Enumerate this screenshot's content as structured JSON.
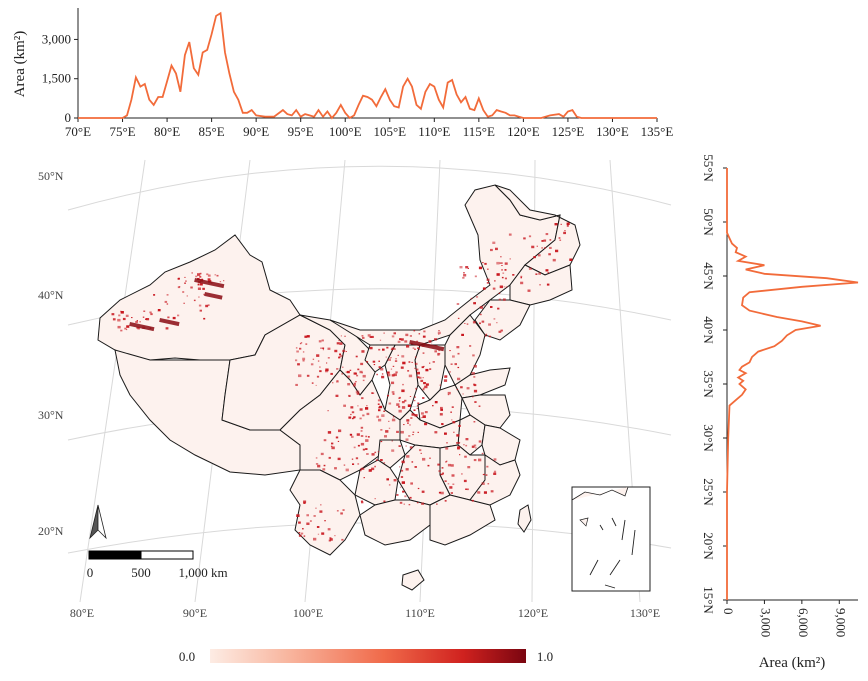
{
  "chart_data": [
    {
      "name": "longitude-profile",
      "type": "line",
      "xlabel": "",
      "ylabel": "Area (km²)",
      "xlim": [
        70,
        135
      ],
      "ylim": [
        0,
        4200
      ],
      "x_ticks": [
        "70°E",
        "75°E",
        "80°E",
        "85°E",
        "90°E",
        "95°E",
        "100°E",
        "105°E",
        "110°E",
        "115°E",
        "120°E",
        "125°E",
        "130°E",
        "135°E"
      ],
      "y_ticks": [
        "0",
        "1,500",
        "3,000"
      ],
      "y_tick_values": [
        0,
        1500,
        3000
      ],
      "x_tick_values": [
        70,
        75,
        80,
        85,
        90,
        95,
        100,
        105,
        110,
        115,
        120,
        125,
        130,
        135
      ],
      "color": "#f26b3a",
      "series": [
        {
          "name": "area",
          "x": [
            70,
            75,
            75.5,
            76,
            76.5,
            77,
            77.5,
            78,
            78.5,
            79,
            79.5,
            80,
            80.5,
            81,
            81.5,
            82,
            82.5,
            83,
            83.5,
            84,
            84.5,
            85,
            85.5,
            86,
            86.5,
            87,
            87.5,
            88,
            88.5,
            89,
            89.5,
            90,
            91,
            92,
            93,
            93.5,
            94,
            94.5,
            95,
            95.5,
            96,
            96.5,
            97,
            97.5,
            98,
            98.5,
            99,
            99.5,
            100,
            100.5,
            101,
            101.5,
            102,
            102.5,
            103,
            103.5,
            104,
            104.5,
            105,
            105.5,
            106,
            106.5,
            107,
            107.5,
            108,
            108.5,
            109,
            109.5,
            110,
            110.5,
            111,
            111.5,
            112,
            112.5,
            113,
            113.5,
            114,
            114.5,
            115,
            115.5,
            116,
            116.5,
            117,
            117.5,
            118,
            118.5,
            119,
            119.5,
            120,
            121,
            122,
            123,
            124,
            124.5,
            125,
            125.5,
            126,
            126.5,
            127,
            128,
            130,
            132,
            135
          ],
          "y": [
            0,
            0,
            100,
            700,
            1550,
            1200,
            1300,
            700,
            500,
            800,
            800,
            1400,
            2000,
            1700,
            1000,
            2400,
            2900,
            1900,
            1650,
            2500,
            2600,
            3200,
            3900,
            4000,
            2500,
            1700,
            1000,
            700,
            200,
            200,
            300,
            100,
            50,
            50,
            300,
            150,
            100,
            300,
            50,
            150,
            100,
            50,
            300,
            50,
            250,
            0,
            200,
            500,
            200,
            0,
            100,
            500,
            850,
            800,
            700,
            450,
            800,
            1100,
            700,
            450,
            400,
            1200,
            1500,
            1200,
            500,
            350,
            1000,
            1300,
            1200,
            700,
            400,
            1350,
            1450,
            900,
            600,
            800,
            350,
            300,
            750,
            300,
            50,
            100,
            300,
            250,
            200,
            100,
            100,
            50,
            0,
            0,
            0,
            100,
            150,
            50,
            250,
            300,
            50,
            0,
            0,
            0,
            0,
            0,
            0
          ]
        }
      ]
    },
    {
      "name": "latitude-profile",
      "type": "line",
      "xlabel": "Area (km²)",
      "ylabel": "",
      "xlim": [
        0,
        10500
      ],
      "ylim": [
        15,
        55
      ],
      "x_ticks": [
        "0",
        "3,000",
        "6,000",
        "9,000"
      ],
      "x_tick_values": [
        0,
        3000,
        6000,
        9000
      ],
      "y_ticks": [
        "15°N",
        "20°N",
        "25°N",
        "30°N",
        "35°N",
        "40°N",
        "45°N",
        "50°N",
        "55°N"
      ],
      "y_tick_values": [
        15,
        20,
        25,
        30,
        35,
        40,
        45,
        50,
        55
      ],
      "color": "#f26b3a",
      "series": [
        {
          "name": "area",
          "lat": [
            15,
            20,
            25,
            30,
            33,
            33.5,
            34,
            34.5,
            35,
            35.3,
            35.6,
            36,
            36.3,
            36.6,
            37,
            37.5,
            38,
            38.5,
            39,
            39.5,
            40,
            40.4,
            40.8,
            41.2,
            41.8,
            42.3,
            43,
            43.5,
            44,
            44.4,
            44.8,
            45.2,
            45.6,
            46,
            46.4,
            46.8,
            47.2,
            47.6,
            48,
            48.5,
            49,
            55
          ],
          "area": [
            0,
            0,
            0,
            100,
            200,
            700,
            1200,
            1500,
            1000,
            1300,
            900,
            1500,
            1000,
            1200,
            1800,
            2000,
            2500,
            3800,
            4400,
            4800,
            5500,
            7500,
            6000,
            4000,
            1800,
            1200,
            1300,
            1800,
            6000,
            10500,
            8000,
            3000,
            1500,
            3000,
            900,
            1500,
            700,
            800,
            400,
            200,
            0,
            0
          ]
        }
      ]
    },
    {
      "name": "map-legend",
      "type": "heatmap",
      "title": "",
      "colorbar_min": "0.0",
      "colorbar_max": "1.0",
      "colors": [
        "#fdece4",
        "#f8b59e",
        "#f06a4a",
        "#d0221f",
        "#7a0510"
      ]
    }
  ],
  "map": {
    "lon_labels": [
      "80°E",
      "90°E",
      "100°E",
      "110°E",
      "120°E",
      "130°E"
    ],
    "lat_labels": [
      "20°N",
      "30°N",
      "40°N",
      "50°N"
    ],
    "scale_bar": {
      "label_0": "0",
      "label_500": "500",
      "label_1000": "1,000 km"
    },
    "province_fill": "#fdf2ee",
    "hotspot_color": "#c8141c"
  }
}
